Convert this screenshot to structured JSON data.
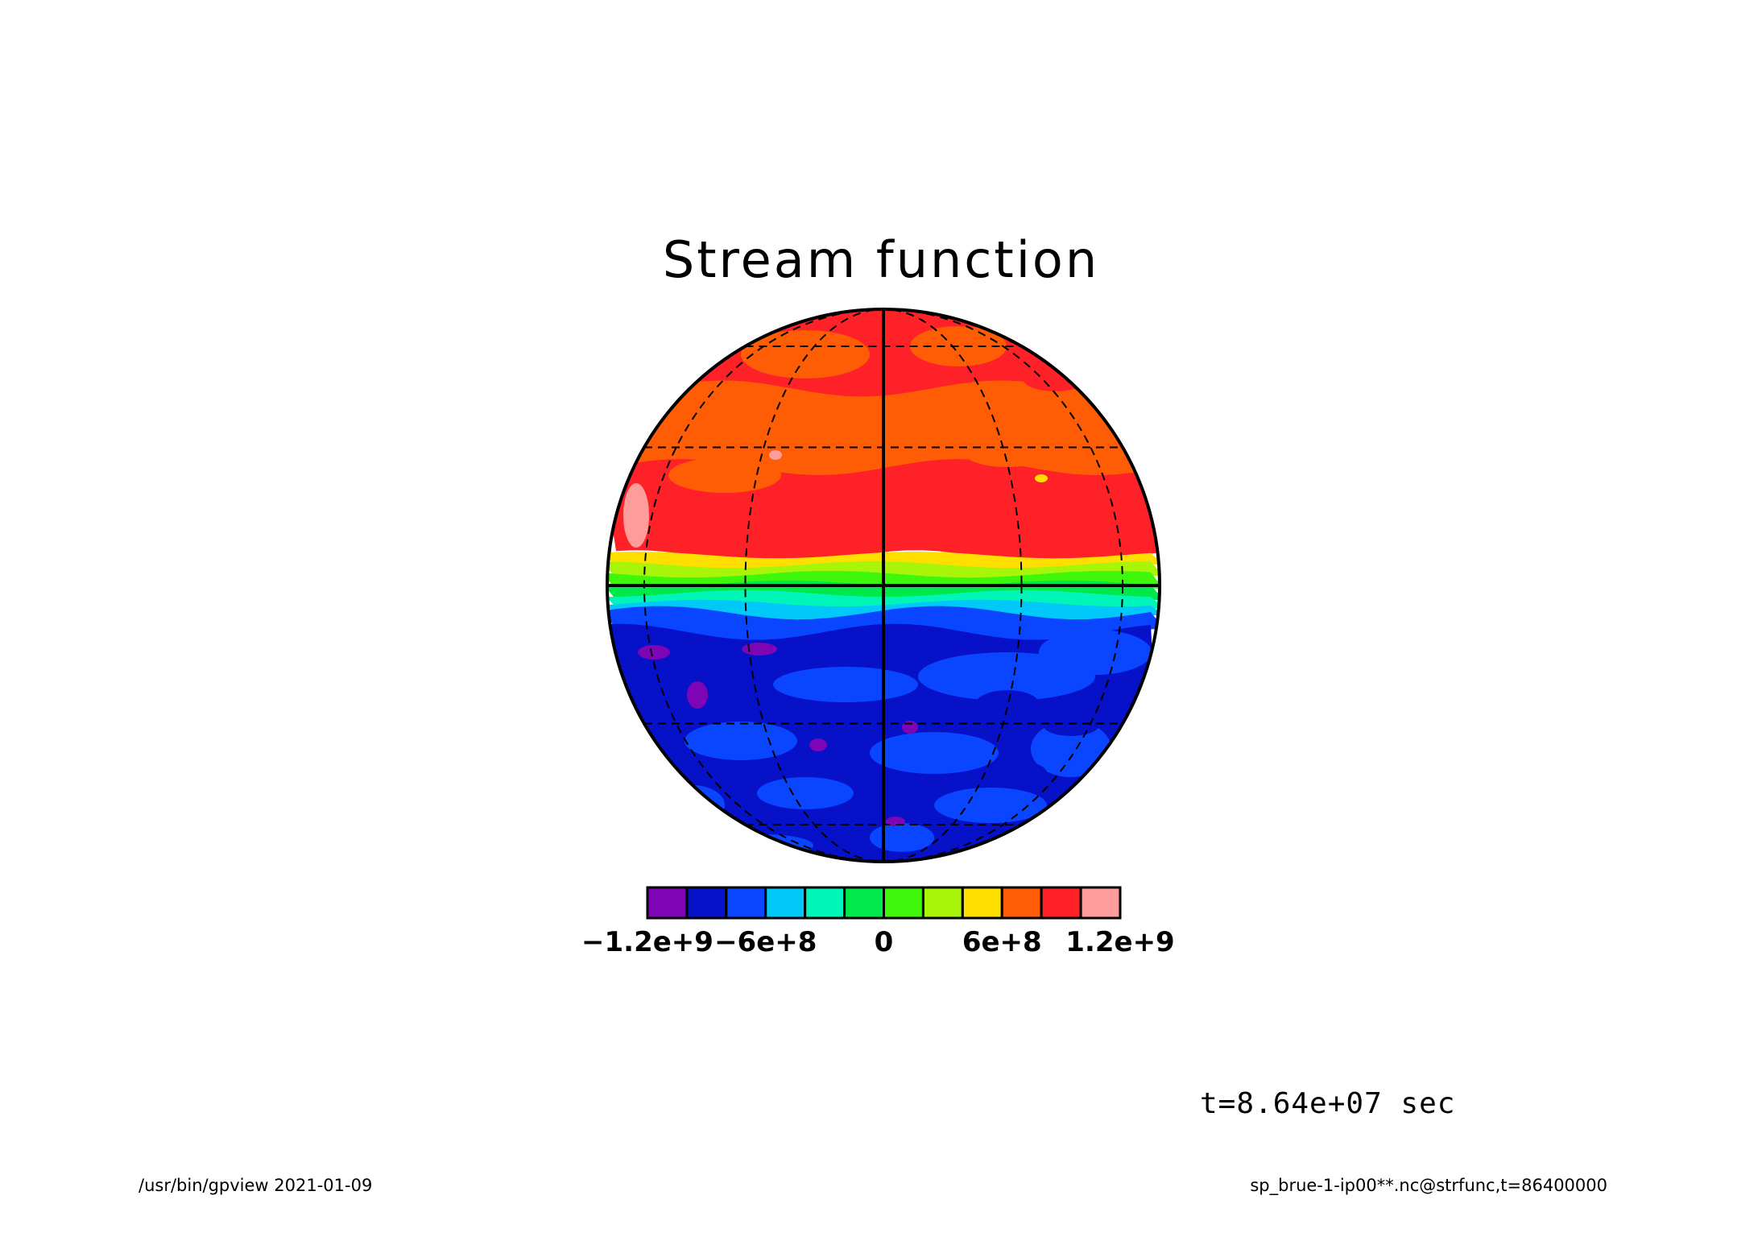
{
  "app": {
    "program": "/usr/bin/gpview",
    "date": "2021-01-09"
  },
  "chart_data": {
    "type": "heatmap",
    "title": "Stream function",
    "projection": "orthographic",
    "graticule": {
      "meridians_dashed": true,
      "parallels_dashed": true,
      "equator_solid": true,
      "central_meridian_solid": true
    },
    "colorbar": {
      "colors": [
        "#7e05b5",
        "#0711c8",
        "#0a46ff",
        "#00c8f8",
        "#00f5b8",
        "#00e94a",
        "#3ff70b",
        "#a9f50a",
        "#fedf00",
        "#fe5d05",
        "#fe2228",
        "#fe9b9b"
      ],
      "tick_labels": [
        "−1.2e+9",
        "−6e+8",
        "0",
        "6e+8",
        "1.2e+9"
      ],
      "tick_values": [
        -1200000000,
        -600000000,
        0,
        600000000,
        1200000000
      ]
    },
    "field_bands": [
      {
        "lat_range": [
          45,
          90
        ],
        "value": 1000000000,
        "color": "#fe2228",
        "note_level": "6e+8..1.2e+9"
      },
      {
        "lat_range": [
          25,
          45
        ],
        "value": 900000000,
        "color": "#fe5d05"
      },
      {
        "lat_range": [
          6,
          25
        ],
        "value": 1100000000,
        "color": "#fe2228"
      },
      {
        "lat_range": [
          4,
          6
        ],
        "value": 700000000,
        "color": "#fedf00"
      },
      {
        "lat_range": [
          2,
          4
        ],
        "value": 400000000,
        "color": "#a9f50a"
      },
      {
        "lat_range": [
          0,
          2
        ],
        "value": 200000000,
        "color": "#3ff70b"
      },
      {
        "lat_range": [
          -2,
          0
        ],
        "value": -100000000,
        "color": "#00e94a"
      },
      {
        "lat_range": [
          -4,
          -2
        ],
        "value": -300000000,
        "color": "#00f5b8"
      },
      {
        "lat_range": [
          -6,
          -4
        ],
        "value": -500000000,
        "color": "#00c8f8"
      },
      {
        "lat_range": [
          -10,
          -6
        ],
        "value": -700000000,
        "color": "#0a46ff"
      },
      {
        "lat_range": [
          -90,
          -10
        ],
        "value": -900000000,
        "color": "#0711c8"
      }
    ],
    "time_label": "t=8.64e+07 sec"
  },
  "footer": {
    "left": "/usr/bin/gpview   2021-01-09",
    "right": "sp_brue-1-ip00**.nc@strfunc,t=86400000"
  }
}
